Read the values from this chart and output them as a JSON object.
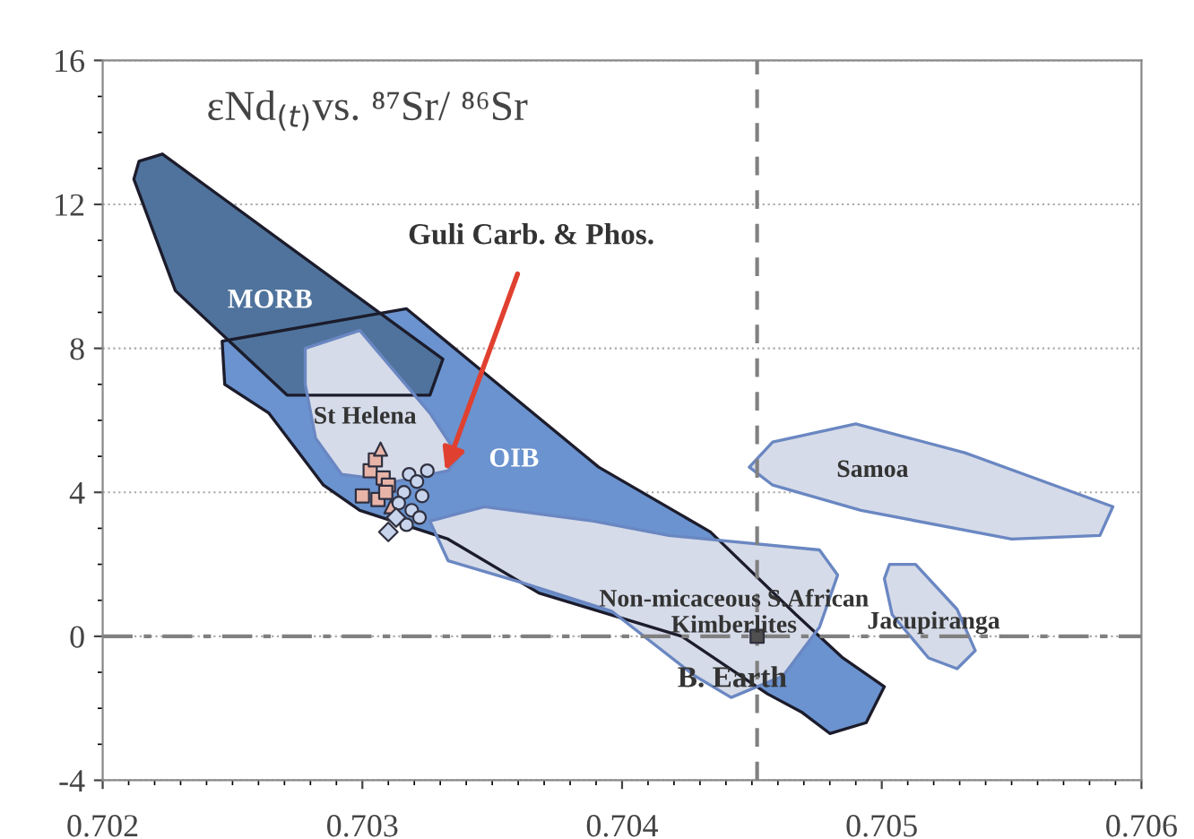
{
  "chart_data": {
    "type": "scatter",
    "title": "εNd$_{(t)}$vs. ⁸⁷Sr/ ⁸⁶Sr",
    "xlim": [
      0.702,
      0.706
    ],
    "xticks": [
      0.702,
      0.703,
      0.704,
      0.705,
      0.706
    ],
    "ylim": [
      -4,
      16
    ],
    "yticks": [
      -4,
      0,
      4,
      8,
      12,
      16
    ],
    "grid": "y",
    "series": [
      {
        "type": "area",
        "name": "OIB",
        "color": "#6a93cf",
        "x": [
          0.70246,
          0.70317,
          0.70391,
          0.70434,
          0.70467,
          0.70485,
          0.70501,
          0.70494,
          0.7048,
          0.70469,
          0.70456,
          0.70423,
          0.70368,
          0.70333,
          0.70299,
          0.70285,
          0.70264,
          0.70247
        ],
        "values": [
          8.2,
          9.1,
          4.7,
          2.9,
          0.6,
          -0.6,
          -1.4,
          -2.4,
          -2.7,
          -2.1,
          -1.6,
          0,
          1.2,
          2.7,
          3.5,
          4.2,
          6.2,
          7.0
        ]
      },
      {
        "type": "area",
        "name": "MORB",
        "color": "#4f739c",
        "x": [
          0.70214,
          0.70223,
          0.70331,
          0.70326,
          0.70271,
          0.70228,
          0.70212
        ],
        "values": [
          13.2,
          13.4,
          7.7,
          6.7,
          6.7,
          9.6,
          12.7
        ]
      },
      {
        "type": "area",
        "name": "St Helena",
        "color": "#d5dbe8",
        "x": [
          0.70278,
          0.70299,
          0.70326,
          0.70337,
          0.70333,
          0.70313,
          0.70292,
          0.70282,
          0.70278
        ],
        "values": [
          8.0,
          8.5,
          6.2,
          5.0,
          4.6,
          4.3,
          4.5,
          5.5,
          7.0
        ]
      },
      {
        "type": "area",
        "name": "Non-micaceous S.African\nKimberlites",
        "color": "#d5dbe8",
        "x": [
          0.70326,
          0.70347,
          0.70389,
          0.70418,
          0.70476,
          0.70483,
          0.70476,
          0.70462,
          0.70442,
          0.70428,
          0.70396,
          0.70361,
          0.70333
        ],
        "values": [
          3.2,
          3.6,
          3.2,
          2.8,
          2.4,
          1.7,
          0.25,
          -1.1,
          -1.7,
          -1.1,
          0.7,
          1.5,
          2.1
        ]
      },
      {
        "type": "area",
        "name": "Samoa",
        "color": "#d5dbe8",
        "x": [
          0.70449,
          0.70458,
          0.7049,
          0.70532,
          0.70589,
          0.70584,
          0.7055,
          0.70492,
          0.70458
        ],
        "values": [
          4.7,
          5.4,
          5.9,
          5.1,
          3.6,
          2.8,
          2.7,
          3.5,
          4.2
        ]
      },
      {
        "type": "area",
        "name": "Jacupiranga",
        "color": "#d5dbe8",
        "x": [
          0.70503,
          0.70513,
          0.70529,
          0.70536,
          0.70529,
          0.70518,
          0.70504,
          0.70501
        ],
        "values": [
          2.0,
          2.0,
          0.75,
          -0.4,
          -0.9,
          -0.6,
          0.6,
          1.6
        ]
      },
      {
        "marker": "square",
        "color": "#e8b4a8",
        "x": [
          0.70303,
          0.70305,
          0.70308,
          0.7031,
          0.703,
          0.70306,
          0.70309
        ],
        "values": [
          4.6,
          4.9,
          4.4,
          4.2,
          3.9,
          3.8,
          4.0
        ]
      },
      {
        "marker": "triangle",
        "color": "#e8b4a8",
        "x": [
          0.70307,
          0.70311
        ],
        "values": [
          5.2,
          3.6
        ]
      },
      {
        "marker": "circle",
        "color": "#c8d4ec",
        "x": [
          0.70318,
          0.70321,
          0.70316,
          0.70323,
          0.70319,
          0.70322,
          0.70317,
          0.70325,
          0.70314
        ],
        "values": [
          4.5,
          4.3,
          4.0,
          3.9,
          3.5,
          3.3,
          3.1,
          4.6,
          3.7
        ]
      },
      {
        "marker": "diamond",
        "color": "#c8d4ec",
        "x": [
          0.7031,
          0.70313
        ],
        "values": [
          2.9,
          3.3
        ]
      },
      {
        "marker": "square",
        "name": "B. Earth",
        "color": "#505050",
        "x": [
          0.70452
        ],
        "values": [
          0
        ]
      }
    ],
    "ref_lines": [
      {
        "axis": "x",
        "value": 0.70452,
        "line_style": "dashed",
        "color": "#808080"
      },
      {
        "axis": "y",
        "value": 0,
        "line_style": "dashdot",
        "color": "#808080"
      }
    ],
    "annotations": [
      {
        "text": "Guli Carb. & Phos.",
        "x": 0.70332,
        "y": 4.6
      }
    ]
  }
}
